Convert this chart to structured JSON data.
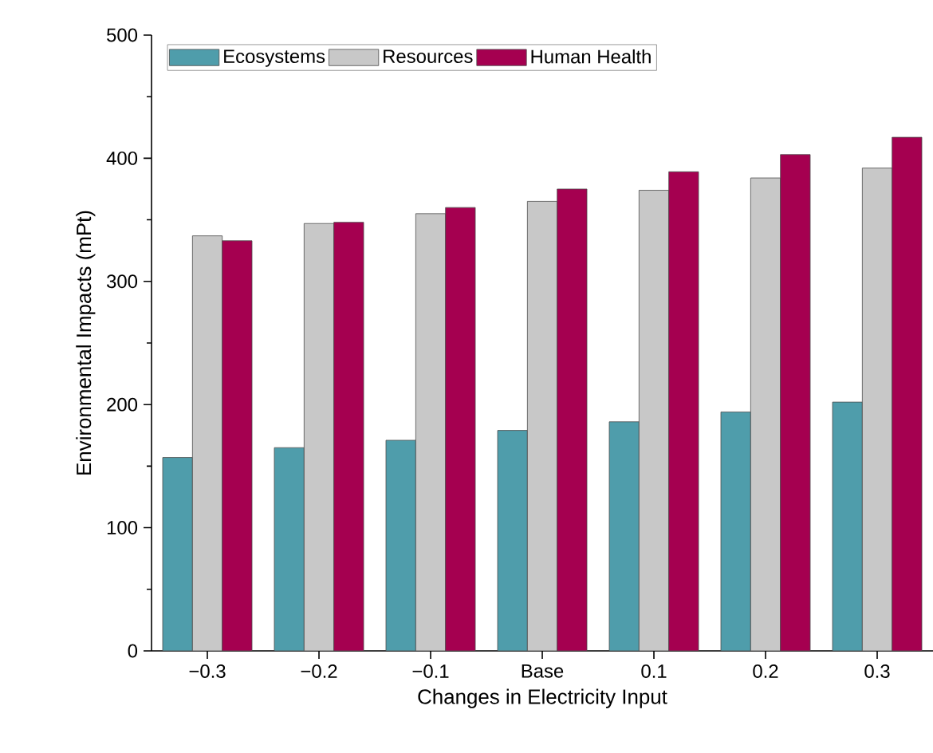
{
  "chart_data": {
    "type": "bar",
    "xlabel": "Changes in Electricity Input",
    "ylabel": "Environmental Impacts (mPt)",
    "categories": [
      "−0.3",
      "−0.2",
      "−0.1",
      "Base",
      "0.1",
      "0.2",
      "0.3"
    ],
    "series": [
      {
        "name": "Ecosystems",
        "color": "#4f9dab",
        "values": [
          157,
          165,
          171,
          179,
          186,
          194,
          202
        ]
      },
      {
        "name": "Resources",
        "color": "#c8c8c8",
        "values": [
          337,
          347,
          355,
          365,
          374,
          384,
          392
        ]
      },
      {
        "name": "Human Health",
        "color": "#a50050",
        "values": [
          333,
          348,
          360,
          375,
          389,
          403,
          417
        ]
      }
    ],
    "ylim": [
      0,
      500
    ],
    "yticks": [
      0,
      100,
      200,
      300,
      400,
      500
    ],
    "legend": "top",
    "grid": false
  }
}
